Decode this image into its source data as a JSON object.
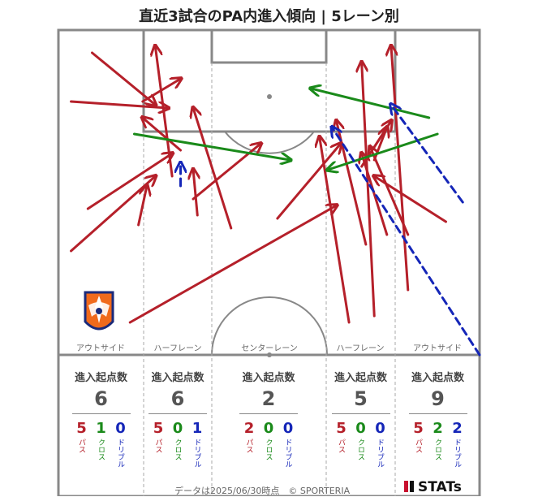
{
  "title": "直近3試合のPA内進入傾向 | 5レーン別",
  "colors": {
    "pass": "#b5202a",
    "cross": "#1a8a1a",
    "dribble": "#1526b8",
    "line": "#888888"
  },
  "lane_names": [
    "アウトサイド",
    "ハーフレーン",
    "センターレーン",
    "ハーフレーン",
    "アウトサイド"
  ],
  "stats_heading": "進入起点数",
  "type_labels": [
    "パス",
    "クロス",
    "ドリブル"
  ],
  "lanes": [
    {
      "total": "6",
      "pass": "5",
      "cross": "1",
      "dribble": "0"
    },
    {
      "total": "6",
      "pass": "5",
      "cross": "0",
      "dribble": "1"
    },
    {
      "total": "2",
      "pass": "2",
      "cross": "0",
      "dribble": "0"
    },
    {
      "total": "5",
      "pass": "5",
      "cross": "0",
      "dribble": "0"
    },
    {
      "total": "9",
      "pass": "5",
      "cross": "2",
      "dribble": "2"
    }
  ],
  "footer": "データは2025/06/30時点　© SPORTERIA",
  "brand": "STATs",
  "chart_data": {
    "type": "arrow-map",
    "title": "直近3試合のPA内進入傾向 | 5レーン別",
    "categories": [
      "アウトサイド",
      "ハーフレーン",
      "センターレーン",
      "ハーフレーン",
      "アウトサイド"
    ],
    "series": [
      {
        "name": "パス",
        "values": [
          5,
          5,
          2,
          5,
          5
        ]
      },
      {
        "name": "クロス",
        "values": [
          1,
          0,
          0,
          0,
          2
        ]
      },
      {
        "name": "ドリブル",
        "values": [
          0,
          1,
          0,
          0,
          2
        ]
      }
    ],
    "totals": [
      6,
      6,
      2,
      5,
      9
    ],
    "arrows": [
      {
        "type": "pass",
        "from": [
          0.03,
          0.68
        ],
        "to": [
          0.23,
          0.45
        ]
      },
      {
        "type": "pass",
        "from": [
          0.07,
          0.55
        ],
        "to": [
          0.27,
          0.38
        ]
      },
      {
        "type": "pass",
        "from": [
          0.08,
          0.07
        ],
        "to": [
          0.23,
          0.23
        ]
      },
      {
        "type": "pass",
        "from": [
          0.03,
          0.22
        ],
        "to": [
          0.26,
          0.24
        ]
      },
      {
        "type": "pass",
        "from": [
          0.29,
          0.37
        ],
        "to": [
          0.2,
          0.27
        ]
      },
      {
        "type": "pass",
        "from": [
          0.2,
          0.22
        ],
        "to": [
          0.29,
          0.15
        ]
      },
      {
        "type": "pass",
        "from": [
          0.19,
          0.6
        ],
        "to": [
          0.21,
          0.48
        ]
      },
      {
        "type": "pass",
        "from": [
          0.27,
          0.45
        ],
        "to": [
          0.23,
          0.05
        ]
      },
      {
        "type": "pass",
        "from": [
          0.33,
          0.57
        ],
        "to": [
          0.32,
          0.43
        ]
      },
      {
        "type": "pass",
        "from": [
          0.41,
          0.61
        ],
        "to": [
          0.32,
          0.24
        ]
      },
      {
        "type": "pass",
        "from": [
          0.32,
          0.52
        ],
        "to": [
          0.48,
          0.35
        ]
      },
      {
        "type": "pass",
        "from": [
          0.17,
          0.9
        ],
        "to": [
          0.66,
          0.54
        ]
      },
      {
        "type": "pass",
        "from": [
          0.52,
          0.58
        ],
        "to": [
          0.67,
          0.35
        ]
      },
      {
        "type": "pass",
        "from": [
          0.69,
          0.9
        ],
        "to": [
          0.62,
          0.33
        ]
      },
      {
        "type": "pass",
        "from": [
          0.75,
          0.88
        ],
        "to": [
          0.72,
          0.1
        ]
      },
      {
        "type": "pass",
        "from": [
          0.78,
          0.63
        ],
        "to": [
          0.72,
          0.38
        ]
      },
      {
        "type": "pass",
        "from": [
          0.83,
          0.63
        ],
        "to": [
          0.74,
          0.36
        ]
      },
      {
        "type": "pass",
        "from": [
          0.73,
          0.66
        ],
        "to": [
          0.66,
          0.28
        ]
      },
      {
        "type": "pass",
        "from": [
          0.83,
          0.8
        ],
        "to": [
          0.79,
          0.05
        ]
      },
      {
        "type": "pass",
        "from": [
          0.92,
          0.59
        ],
        "to": [
          0.75,
          0.45
        ]
      },
      {
        "type": "pass",
        "from": [
          0.72,
          0.42
        ],
        "to": [
          0.79,
          0.28
        ]
      },
      {
        "type": "pass",
        "from": [
          0.75,
          0.4
        ],
        "to": [
          0.78,
          0.3
        ]
      },
      {
        "type": "cross",
        "from": [
          0.9,
          0.32
        ],
        "to": [
          0.64,
          0.43
        ]
      },
      {
        "type": "cross",
        "from": [
          0.88,
          0.27
        ],
        "to": [
          0.6,
          0.18
        ]
      },
      {
        "type": "cross",
        "from": [
          0.18,
          0.32
        ],
        "to": [
          0.55,
          0.4
        ]
      },
      {
        "type": "dribble",
        "from": [
          0.96,
          0.53
        ],
        "to": [
          0.79,
          0.23
        ]
      },
      {
        "type": "dribble",
        "from": [
          1.0,
          1.0
        ],
        "to": [
          0.65,
          0.3
        ]
      },
      {
        "type": "dribble",
        "from": [
          0.29,
          0.48
        ],
        "to": [
          0.29,
          0.41
        ]
      }
    ]
  }
}
